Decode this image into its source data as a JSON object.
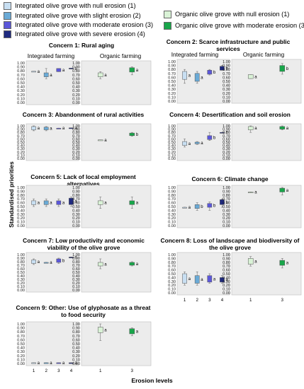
{
  "legend": [
    {
      "label": "Integrated olive grove with null erosion (1)",
      "color": "#c8dff2"
    },
    {
      "label": "Integrated olive grove with slight erosion (2)",
      "color": "#6aaad6"
    },
    {
      "label": "Integrated olive grove with moderate erosion (3)",
      "color": "#5b57d9"
    },
    {
      "label": "Integrated olive grove with severe erosion (4)",
      "color": "#1f2a80"
    },
    {
      "label": "Organic olive grove with null erosion (1)",
      "color": "#d9f2d6"
    },
    {
      "label": "Organic olive grove with moderate erosion (3)",
      "color": "#18a64a"
    }
  ],
  "column_headers": {
    "integrated": "Integrated farming",
    "organic": "Organic farming"
  },
  "y_axis_label": "Standardised priorities",
  "x_axis_label": "Erosion levels",
  "x_ticks_integrated": [
    "1",
    "2",
    "3",
    "4"
  ],
  "x_ticks_organic": [
    "1",
    "3"
  ],
  "y_ticks": [
    "0.00",
    "0.10",
    "0.20",
    "0.30",
    "0.40",
    "0.50",
    "0.60",
    "0.70",
    "0.80",
    "0.90",
    "1.00"
  ],
  "chart_data": [
    {
      "type": "box",
      "title": "Concern 1: Rural aging",
      "integrated": [
        {
          "x": "1",
          "q1": 0.78,
          "q3": 0.79,
          "lo": 0.78,
          "hi": 0.79,
          "letter": "a"
        },
        {
          "x": "2",
          "q1": 0.65,
          "q3": 0.75,
          "lo": 0.6,
          "hi": 0.86,
          "letter": "a"
        },
        {
          "x": "3",
          "q1": 0.78,
          "q3": 0.86,
          "lo": 0.78,
          "hi": 0.86,
          "letter": "a"
        },
        {
          "x": "4",
          "q1": 0.85,
          "q3": 0.87,
          "lo": 0.85,
          "hi": 0.87,
          "letter": "b"
        }
      ],
      "organic": [
        {
          "x": "1",
          "q1": 0.65,
          "q3": 0.75,
          "lo": 0.6,
          "hi": 0.78,
          "letter": "a"
        },
        {
          "x": "3",
          "q1": 0.77,
          "q3": 0.88,
          "lo": 0.7,
          "hi": 0.9,
          "letter": "a"
        }
      ]
    },
    {
      "type": "box",
      "title": "Concern 2: Scarce infrastructure and public services",
      "integrated": [
        {
          "x": "1",
          "q1": 0.55,
          "q3": 0.75,
          "lo": 0.45,
          "hi": 0.8,
          "letter": "a"
        },
        {
          "x": "2",
          "q1": 0.5,
          "q3": 0.7,
          "lo": 0.45,
          "hi": 0.75,
          "letter": "a"
        },
        {
          "x": "3",
          "q1": 0.68,
          "q3": 0.78,
          "lo": 0.66,
          "hi": 0.8,
          "letter": "b"
        },
        {
          "x": "4",
          "q1": 0.78,
          "q3": 0.88,
          "lo": 0.78,
          "hi": 0.9,
          "letter": "b"
        }
      ],
      "organic": [
        {
          "x": "1",
          "q1": 0.57,
          "q3": 0.67,
          "lo": 0.57,
          "hi": 0.67,
          "letter": "a"
        },
        {
          "x": "3",
          "q1": 0.75,
          "q3": 0.9,
          "lo": 0.68,
          "hi": 0.95,
          "letter": "b"
        }
      ]
    },
    {
      "type": "box",
      "title": "Concern 3: Abandonment of rural activities",
      "integrated": [
        {
          "x": "1",
          "q1": 0.88,
          "q3": 0.98,
          "lo": 0.85,
          "hi": 1.0,
          "letter": "a"
        },
        {
          "x": "2",
          "q1": 0.88,
          "q3": 0.96,
          "lo": 0.85,
          "hi": 0.98,
          "letter": "a"
        },
        {
          "x": "3",
          "q1": 0.93,
          "q3": 0.93,
          "lo": 0.93,
          "hi": 0.93,
          "letter": "a"
        },
        {
          "x": "4",
          "q1": 0.94,
          "q3": 0.94,
          "lo": 0.94,
          "hi": 0.94,
          "letter": "a"
        }
      ],
      "organic": [
        {
          "x": "1",
          "q1": 0.57,
          "q3": 0.57,
          "lo": 0.57,
          "hi": 0.57,
          "letter": "a"
        },
        {
          "x": "3",
          "q1": 0.7,
          "q3": 0.78,
          "lo": 0.68,
          "hi": 0.8,
          "letter": "b"
        }
      ]
    },
    {
      "type": "box",
      "title": "Concern 4: Desertification and soil erosion",
      "integrated": [
        {
          "x": "1",
          "q1": 0.4,
          "q3": 0.52,
          "lo": 0.35,
          "hi": 0.6,
          "letter": "a"
        },
        {
          "x": "2",
          "q1": 0.45,
          "q3": 0.5,
          "lo": 0.43,
          "hi": 0.52,
          "letter": "a"
        },
        {
          "x": "3",
          "q1": 0.58,
          "q3": 0.7,
          "lo": 0.55,
          "hi": 0.8,
          "letter": "b"
        },
        {
          "x": "4",
          "q1": 0.8,
          "q3": 0.8,
          "lo": 0.8,
          "hi": 0.8,
          "letter": "c"
        }
      ],
      "organic": [
        {
          "x": "1",
          "q1": 0.88,
          "q3": 0.98,
          "lo": 0.8,
          "hi": 1.0,
          "letter": "a"
        },
        {
          "x": "3",
          "q1": 0.9,
          "q3": 0.98,
          "lo": 0.88,
          "hi": 1.0,
          "letter": "a"
        }
      ]
    },
    {
      "type": "box",
      "title": "Concern 5: Lack of local employment alternatives",
      "integrated": [
        {
          "x": "1",
          "q1": 0.55,
          "q3": 0.65,
          "lo": 0.5,
          "hi": 0.7,
          "letter": "a"
        },
        {
          "x": "2",
          "q1": 0.55,
          "q3": 0.65,
          "lo": 0.5,
          "hi": 0.7,
          "letter": "a"
        },
        {
          "x": "3",
          "q1": 0.55,
          "q3": 0.65,
          "lo": 0.5,
          "hi": 0.7,
          "letter": "a"
        },
        {
          "x": "4",
          "q1": 0.55,
          "q3": 0.72,
          "lo": 0.5,
          "hi": 0.75,
          "letter": "a"
        }
      ],
      "organic": [
        {
          "x": "1",
          "q1": 0.55,
          "q3": 0.65,
          "lo": 0.45,
          "hi": 0.75,
          "letter": "a"
        },
        {
          "x": "3",
          "q1": 0.55,
          "q3": 0.65,
          "lo": 0.45,
          "hi": 0.75,
          "letter": "a"
        }
      ]
    },
    {
      "type": "box",
      "title": "Concern 6: Climate change",
      "integrated": [
        {
          "x": "1",
          "q1": 0.48,
          "q3": 0.48,
          "lo": 0.48,
          "hi": 0.48,
          "letter": "a"
        },
        {
          "x": "2",
          "q1": 0.45,
          "q3": 0.55,
          "lo": 0.4,
          "hi": 0.6,
          "letter": "b"
        },
        {
          "x": "3",
          "q1": 0.48,
          "q3": 0.58,
          "lo": 0.4,
          "hi": 0.62,
          "letter": "b"
        },
        {
          "x": "4",
          "q1": 0.55,
          "q3": 0.68,
          "lo": 0.48,
          "hi": 0.7,
          "letter": "b"
        }
      ],
      "organic": [
        {
          "x": "1",
          "q1": 0.88,
          "q3": 0.88,
          "lo": 0.88,
          "hi": 0.88,
          "letter": "a"
        },
        {
          "x": "3",
          "q1": 0.88,
          "q3": 0.98,
          "lo": 0.8,
          "hi": 1.0,
          "letter": "a"
        }
      ]
    },
    {
      "type": "box",
      "title": "Concern 7: Low productivity and economic viability of the olive grove",
      "integrated": [
        {
          "x": "1",
          "q1": 0.75,
          "q3": 0.85,
          "lo": 0.72,
          "hi": 0.88,
          "letter": "a"
        },
        {
          "x": "2",
          "q1": 0.78,
          "q3": 0.78,
          "lo": 0.78,
          "hi": 0.78,
          "letter": "a"
        },
        {
          "x": "3",
          "q1": 0.78,
          "q3": 0.88,
          "lo": 0.75,
          "hi": 0.9,
          "letter": "b"
        },
        {
          "x": "4",
          "q1": 0.93,
          "q3": 0.93,
          "lo": 0.93,
          "hi": 0.93,
          "letter": "c"
        }
      ],
      "organic": [
        {
          "x": "1",
          "q1": 0.68,
          "q3": 0.78,
          "lo": 0.6,
          "hi": 0.88,
          "letter": "a"
        },
        {
          "x": "3",
          "q1": 0.7,
          "q3": 0.78,
          "lo": 0.68,
          "hi": 0.8,
          "letter": "a"
        }
      ]
    },
    {
      "type": "box",
      "title": "Concern 8: Loss of landscape and biodiversity of the olive grove",
      "integrated": [
        {
          "x": "1",
          "q1": 0.25,
          "q3": 0.5,
          "lo": 0.2,
          "hi": 0.55,
          "letter": "a"
        },
        {
          "x": "2",
          "q1": 0.25,
          "q3": 0.45,
          "lo": 0.2,
          "hi": 0.55,
          "letter": "a"
        },
        {
          "x": "3",
          "q1": 0.28,
          "q3": 0.45,
          "lo": 0.25,
          "hi": 0.5,
          "letter": "a"
        },
        {
          "x": "4",
          "q1": 0.28,
          "q3": 0.4,
          "lo": 0.25,
          "hi": 0.45,
          "letter": "a"
        }
      ],
      "organic": [
        {
          "x": "1",
          "q1": 0.75,
          "q3": 0.9,
          "lo": 0.7,
          "hi": 0.95,
          "letter": "a"
        },
        {
          "x": "3",
          "q1": 0.72,
          "q3": 0.85,
          "lo": 0.65,
          "hi": 0.9,
          "letter": "a"
        }
      ]
    },
    {
      "type": "box",
      "title": "Concern 9: Other: Use of glyphosate as a threat to food security",
      "integrated": [
        {
          "x": "1",
          "q1": 0.02,
          "q3": 0.02,
          "lo": 0.02,
          "hi": 0.02,
          "letter": "a"
        },
        {
          "x": "2",
          "q1": 0.02,
          "q3": 0.02,
          "lo": 0.02,
          "hi": 0.02,
          "letter": "a"
        },
        {
          "x": "3",
          "q1": 0.02,
          "q3": 0.02,
          "lo": 0.02,
          "hi": 0.02,
          "letter": "a"
        },
        {
          "x": "4",
          "q1": 0.02,
          "q3": 0.02,
          "lo": 0.02,
          "hi": 0.02,
          "letter": "a"
        }
      ],
      "organic": [
        {
          "x": "1",
          "q1": 0.78,
          "q3": 0.92,
          "lo": 0.58,
          "hi": 1.0,
          "letter": "a"
        },
        {
          "x": "3",
          "q1": 0.75,
          "q3": 0.88,
          "lo": 0.7,
          "hi": 0.9,
          "letter": "a"
        }
      ]
    }
  ]
}
